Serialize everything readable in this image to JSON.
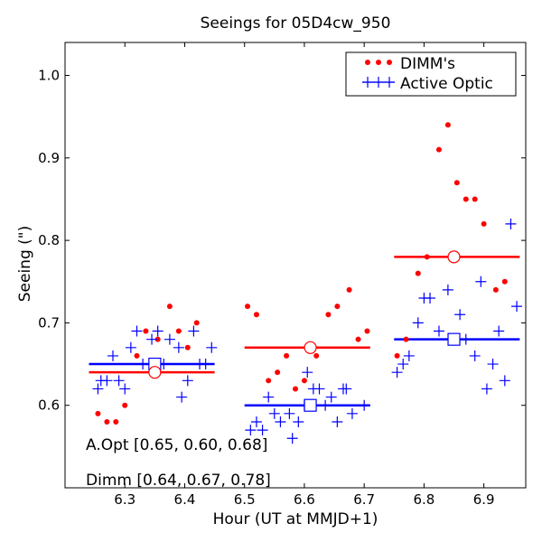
{
  "chart_data": {
    "type": "scatter",
    "title": "Seeings for 05D4cw_950",
    "xlabel": "Hour (UT at MMJD+1)",
    "ylabel": "Seeing (\")",
    "xlim": [
      6.2,
      6.97
    ],
    "ylim": [
      0.5,
      1.04
    ],
    "xticks": [
      6.3,
      6.4,
      6.5,
      6.6,
      6.7,
      6.8,
      6.9
    ],
    "xtick_labels": [
      "6.3",
      "6.4",
      "6.5",
      "6.6",
      "6.7",
      "6.8",
      "6.9"
    ],
    "yticks": [
      0.6,
      0.7,
      0.8,
      0.9,
      1.0
    ],
    "ytick_labels": [
      "0.6",
      "0.7",
      "0.8",
      "0.9",
      "1.0"
    ],
    "grid": false,
    "legend": {
      "position": "top-right",
      "entries": [
        {
          "label": "DIMM's",
          "marker": "dot",
          "color": "#ff0000"
        },
        {
          "label": "Active Optic",
          "marker": "plus",
          "color": "#0000ff"
        }
      ]
    },
    "series": [
      {
        "name": "DIMM's",
        "marker": "dot",
        "color": "#ff0000",
        "points": [
          [
            6.255,
            0.59
          ],
          [
            6.27,
            0.58
          ],
          [
            6.285,
            0.58
          ],
          [
            6.3,
            0.6
          ],
          [
            6.32,
            0.66
          ],
          [
            6.335,
            0.69
          ],
          [
            6.355,
            0.68
          ],
          [
            6.375,
            0.72
          ],
          [
            6.39,
            0.69
          ],
          [
            6.405,
            0.67
          ],
          [
            6.42,
            0.7
          ],
          [
            6.505,
            0.72
          ],
          [
            6.52,
            0.71
          ],
          [
            6.54,
            0.63
          ],
          [
            6.555,
            0.64
          ],
          [
            6.57,
            0.66
          ],
          [
            6.585,
            0.62
          ],
          [
            6.6,
            0.63
          ],
          [
            6.62,
            0.66
          ],
          [
            6.64,
            0.71
          ],
          [
            6.655,
            0.72
          ],
          [
            6.675,
            0.74
          ],
          [
            6.69,
            0.68
          ],
          [
            6.705,
            0.69
          ],
          [
            6.755,
            0.66
          ],
          [
            6.77,
            0.68
          ],
          [
            6.79,
            0.76
          ],
          [
            6.805,
            0.78
          ],
          [
            6.825,
            0.91
          ],
          [
            6.84,
            0.94
          ],
          [
            6.855,
            0.87
          ],
          [
            6.87,
            0.85
          ],
          [
            6.885,
            0.85
          ],
          [
            6.9,
            0.82
          ],
          [
            6.92,
            0.74
          ],
          [
            6.935,
            0.75
          ]
        ]
      },
      {
        "name": "Active Optic",
        "marker": "plus",
        "color": "#0000ff",
        "points": [
          [
            6.255,
            0.62
          ],
          [
            6.26,
            0.63
          ],
          [
            6.27,
            0.63
          ],
          [
            6.28,
            0.66
          ],
          [
            6.29,
            0.63
          ],
          [
            6.3,
            0.62
          ],
          [
            6.31,
            0.67
          ],
          [
            6.32,
            0.69
          ],
          [
            6.33,
            0.65
          ],
          [
            6.345,
            0.68
          ],
          [
            6.355,
            0.69
          ],
          [
            6.365,
            0.65
          ],
          [
            6.375,
            0.68
          ],
          [
            6.39,
            0.67
          ],
          [
            6.395,
            0.61
          ],
          [
            6.405,
            0.63
          ],
          [
            6.415,
            0.69
          ],
          [
            6.425,
            0.65
          ],
          [
            6.435,
            0.65
          ],
          [
            6.445,
            0.67
          ],
          [
            6.51,
            0.57
          ],
          [
            6.52,
            0.58
          ],
          [
            6.53,
            0.57
          ],
          [
            6.54,
            0.61
          ],
          [
            6.55,
            0.59
          ],
          [
            6.56,
            0.58
          ],
          [
            6.575,
            0.59
          ],
          [
            6.58,
            0.56
          ],
          [
            6.59,
            0.58
          ],
          [
            6.6,
            0.6
          ],
          [
            6.605,
            0.64
          ],
          [
            6.615,
            0.62
          ],
          [
            6.625,
            0.62
          ],
          [
            6.635,
            0.6
          ],
          [
            6.645,
            0.61
          ],
          [
            6.655,
            0.58
          ],
          [
            6.665,
            0.62
          ],
          [
            6.67,
            0.62
          ],
          [
            6.68,
            0.59
          ],
          [
            6.7,
            0.6
          ],
          [
            6.755,
            0.64
          ],
          [
            6.765,
            0.65
          ],
          [
            6.775,
            0.66
          ],
          [
            6.79,
            0.7
          ],
          [
            6.8,
            0.73
          ],
          [
            6.81,
            0.73
          ],
          [
            6.825,
            0.69
          ],
          [
            6.84,
            0.74
          ],
          [
            6.85,
            0.68
          ],
          [
            6.86,
            0.71
          ],
          [
            6.87,
            0.68
          ],
          [
            6.885,
            0.66
          ],
          [
            6.895,
            0.75
          ],
          [
            6.905,
            0.62
          ],
          [
            6.915,
            0.65
          ],
          [
            6.925,
            0.69
          ],
          [
            6.935,
            0.63
          ],
          [
            6.945,
            0.82
          ],
          [
            6.955,
            0.72
          ]
        ]
      }
    ],
    "segments": [
      {
        "name": "A.Opt",
        "color": "#0000ff",
        "x_start": 6.24,
        "x_end": 6.45,
        "value": 0.65,
        "marker_x": 6.35
      },
      {
        "name": "A.Opt",
        "color": "#0000ff",
        "x_start": 6.5,
        "x_end": 6.71,
        "value": 0.6,
        "marker_x": 6.61
      },
      {
        "name": "A.Opt",
        "color": "#0000ff",
        "x_start": 6.75,
        "x_end": 6.96,
        "value": 0.68,
        "marker_x": 6.85
      },
      {
        "name": "Dimm",
        "color": "#ff0000",
        "x_start": 6.24,
        "x_end": 6.45,
        "value": 0.64,
        "marker_x": 6.35
      },
      {
        "name": "Dimm",
        "color": "#ff0000",
        "x_start": 6.5,
        "x_end": 6.71,
        "value": 0.67,
        "marker_x": 6.61
      },
      {
        "name": "Dimm",
        "color": "#ff0000",
        "x_start": 6.75,
        "x_end": 6.96,
        "value": 0.78,
        "marker_x": 6.85
      }
    ],
    "annotations": [
      {
        "text": "A.Opt [0.65, 0.60, 0.68]",
        "color": "#0000ff"
      },
      {
        "text": "Dimm [0.64, 0.67, 0.78]",
        "color": "#ff0000"
      }
    ]
  }
}
